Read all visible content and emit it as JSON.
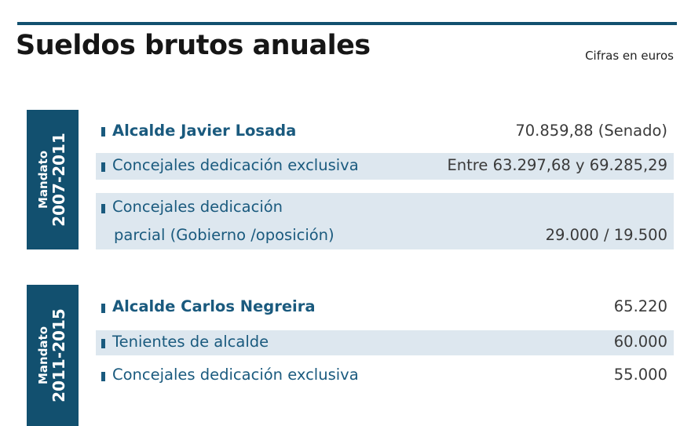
{
  "header": {
    "title": "Sueldos brutos anuales",
    "unit_note": "Cifras en euros"
  },
  "colors": {
    "accent": "#1a5a7e",
    "tab": "#12506f",
    "row_shading": "#dde7ef",
    "rule": "#12506f"
  },
  "terms": [
    {
      "tab_word": "Mandato",
      "tab_years": "2007-2011",
      "rows": [
        {
          "label": "Alcalde Javier Losada",
          "value": "70.859,88 (Senado)"
        },
        {
          "label": "Concejales dedicación exclusiva",
          "value": "Entre 63.297,68 y 69.285,29"
        },
        {
          "label": "Concejales dedicación",
          "label_line2": "parcial (Gobierno /oposición)",
          "value": "29.000 / 19.500"
        }
      ]
    },
    {
      "tab_word": "Mandato",
      "tab_years": "2011-2015",
      "rows": [
        {
          "label": "Alcalde Carlos Negreira",
          "value": "65.220"
        },
        {
          "label": "Tenientes de alcalde",
          "value": "60.000"
        },
        {
          "label": "Concejales dedicación exclusiva",
          "value": "55.000"
        }
      ]
    }
  ]
}
